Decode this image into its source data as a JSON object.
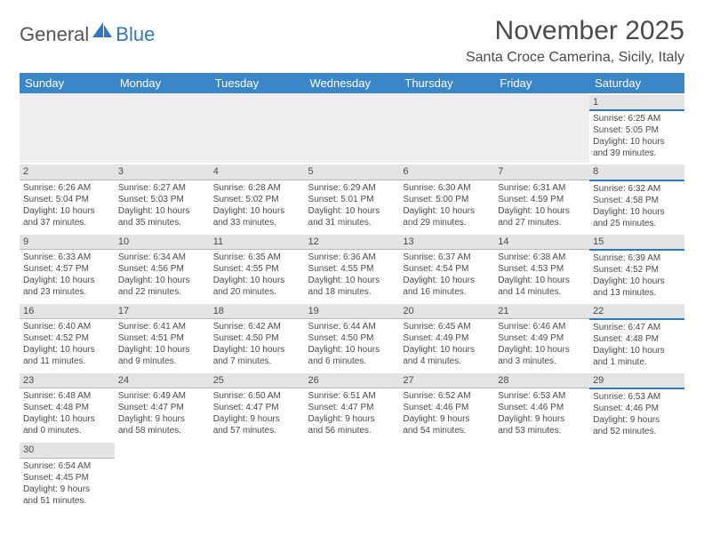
{
  "logo": {
    "text1": "General",
    "text2": "Blue"
  },
  "title": "November 2025",
  "location": "Santa Croce Camerina, Sicily, Italy",
  "colors": {
    "header_bg": "#3a86c8",
    "header_text": "#ffffff",
    "daynum_bg": "#e4e4e4",
    "sat_accent": "#2f78bd",
    "text": "#4a4a4a"
  },
  "weekdays": [
    "Sunday",
    "Monday",
    "Tuesday",
    "Wednesday",
    "Thursday",
    "Friday",
    "Saturday"
  ],
  "weeks": [
    [
      null,
      null,
      null,
      null,
      null,
      null,
      {
        "n": "1",
        "sr": "Sunrise: 6:25 AM",
        "ss": "Sunset: 5:05 PM",
        "d1": "Daylight: 10 hours",
        "d2": "and 39 minutes."
      }
    ],
    [
      {
        "n": "2",
        "sr": "Sunrise: 6:26 AM",
        "ss": "Sunset: 5:04 PM",
        "d1": "Daylight: 10 hours",
        "d2": "and 37 minutes."
      },
      {
        "n": "3",
        "sr": "Sunrise: 6:27 AM",
        "ss": "Sunset: 5:03 PM",
        "d1": "Daylight: 10 hours",
        "d2": "and 35 minutes."
      },
      {
        "n": "4",
        "sr": "Sunrise: 6:28 AM",
        "ss": "Sunset: 5:02 PM",
        "d1": "Daylight: 10 hours",
        "d2": "and 33 minutes."
      },
      {
        "n": "5",
        "sr": "Sunrise: 6:29 AM",
        "ss": "Sunset: 5:01 PM",
        "d1": "Daylight: 10 hours",
        "d2": "and 31 minutes."
      },
      {
        "n": "6",
        "sr": "Sunrise: 6:30 AM",
        "ss": "Sunset: 5:00 PM",
        "d1": "Daylight: 10 hours",
        "d2": "and 29 minutes."
      },
      {
        "n": "7",
        "sr": "Sunrise: 6:31 AM",
        "ss": "Sunset: 4:59 PM",
        "d1": "Daylight: 10 hours",
        "d2": "and 27 minutes."
      },
      {
        "n": "8",
        "sr": "Sunrise: 6:32 AM",
        "ss": "Sunset: 4:58 PM",
        "d1": "Daylight: 10 hours",
        "d2": "and 25 minutes."
      }
    ],
    [
      {
        "n": "9",
        "sr": "Sunrise: 6:33 AM",
        "ss": "Sunset: 4:57 PM",
        "d1": "Daylight: 10 hours",
        "d2": "and 23 minutes."
      },
      {
        "n": "10",
        "sr": "Sunrise: 6:34 AM",
        "ss": "Sunset: 4:56 PM",
        "d1": "Daylight: 10 hours",
        "d2": "and 22 minutes."
      },
      {
        "n": "11",
        "sr": "Sunrise: 6:35 AM",
        "ss": "Sunset: 4:55 PM",
        "d1": "Daylight: 10 hours",
        "d2": "and 20 minutes."
      },
      {
        "n": "12",
        "sr": "Sunrise: 6:36 AM",
        "ss": "Sunset: 4:55 PM",
        "d1": "Daylight: 10 hours",
        "d2": "and 18 minutes."
      },
      {
        "n": "13",
        "sr": "Sunrise: 6:37 AM",
        "ss": "Sunset: 4:54 PM",
        "d1": "Daylight: 10 hours",
        "d2": "and 16 minutes."
      },
      {
        "n": "14",
        "sr": "Sunrise: 6:38 AM",
        "ss": "Sunset: 4:53 PM",
        "d1": "Daylight: 10 hours",
        "d2": "and 14 minutes."
      },
      {
        "n": "15",
        "sr": "Sunrise: 6:39 AM",
        "ss": "Sunset: 4:52 PM",
        "d1": "Daylight: 10 hours",
        "d2": "and 13 minutes."
      }
    ],
    [
      {
        "n": "16",
        "sr": "Sunrise: 6:40 AM",
        "ss": "Sunset: 4:52 PM",
        "d1": "Daylight: 10 hours",
        "d2": "and 11 minutes."
      },
      {
        "n": "17",
        "sr": "Sunrise: 6:41 AM",
        "ss": "Sunset: 4:51 PM",
        "d1": "Daylight: 10 hours",
        "d2": "and 9 minutes."
      },
      {
        "n": "18",
        "sr": "Sunrise: 6:42 AM",
        "ss": "Sunset: 4:50 PM",
        "d1": "Daylight: 10 hours",
        "d2": "and 7 minutes."
      },
      {
        "n": "19",
        "sr": "Sunrise: 6:44 AM",
        "ss": "Sunset: 4:50 PM",
        "d1": "Daylight: 10 hours",
        "d2": "and 6 minutes."
      },
      {
        "n": "20",
        "sr": "Sunrise: 6:45 AM",
        "ss": "Sunset: 4:49 PM",
        "d1": "Daylight: 10 hours",
        "d2": "and 4 minutes."
      },
      {
        "n": "21",
        "sr": "Sunrise: 6:46 AM",
        "ss": "Sunset: 4:49 PM",
        "d1": "Daylight: 10 hours",
        "d2": "and 3 minutes."
      },
      {
        "n": "22",
        "sr": "Sunrise: 6:47 AM",
        "ss": "Sunset: 4:48 PM",
        "d1": "Daylight: 10 hours",
        "d2": "and 1 minute."
      }
    ],
    [
      {
        "n": "23",
        "sr": "Sunrise: 6:48 AM",
        "ss": "Sunset: 4:48 PM",
        "d1": "Daylight: 10 hours",
        "d2": "and 0 minutes."
      },
      {
        "n": "24",
        "sr": "Sunrise: 6:49 AM",
        "ss": "Sunset: 4:47 PM",
        "d1": "Daylight: 9 hours",
        "d2": "and 58 minutes."
      },
      {
        "n": "25",
        "sr": "Sunrise: 6:50 AM",
        "ss": "Sunset: 4:47 PM",
        "d1": "Daylight: 9 hours",
        "d2": "and 57 minutes."
      },
      {
        "n": "26",
        "sr": "Sunrise: 6:51 AM",
        "ss": "Sunset: 4:47 PM",
        "d1": "Daylight: 9 hours",
        "d2": "and 56 minutes."
      },
      {
        "n": "27",
        "sr": "Sunrise: 6:52 AM",
        "ss": "Sunset: 4:46 PM",
        "d1": "Daylight: 9 hours",
        "d2": "and 54 minutes."
      },
      {
        "n": "28",
        "sr": "Sunrise: 6:53 AM",
        "ss": "Sunset: 4:46 PM",
        "d1": "Daylight: 9 hours",
        "d2": "and 53 minutes."
      },
      {
        "n": "29",
        "sr": "Sunrise: 6:53 AM",
        "ss": "Sunset: 4:46 PM",
        "d1": "Daylight: 9 hours",
        "d2": "and 52 minutes."
      }
    ],
    [
      {
        "n": "30",
        "sr": "Sunrise: 6:54 AM",
        "ss": "Sunset: 4:45 PM",
        "d1": "Daylight: 9 hours",
        "d2": "and 51 minutes."
      },
      null,
      null,
      null,
      null,
      null,
      null
    ]
  ]
}
